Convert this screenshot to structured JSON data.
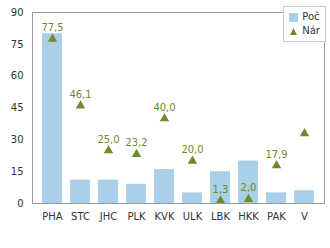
{
  "chart_data": {
    "type": "bar",
    "categories": [
      "PHA",
      "STC",
      "JHC",
      "PLK",
      "KVK",
      "ULK",
      "LBK",
      "HKK",
      "PAK",
      "V"
    ],
    "series": [
      {
        "name": "Poč",
        "type": "bar",
        "color": "#a9cfe9",
        "values": [
          80,
          11,
          11,
          9,
          16,
          5,
          15,
          20,
          5,
          6
        ]
      },
      {
        "name": "Nár",
        "type": "scatter",
        "marker": "triangle",
        "color": "#6f8a2c",
        "data_labels": true,
        "values": [
          77.5,
          46.1,
          25.0,
          23.2,
          40.0,
          20.0,
          1.3,
          2.0,
          17.9,
          33
        ],
        "value_labels": [
          "77,5",
          "46,1",
          "25,0",
          "23,2",
          "40,0",
          "20,0",
          "1,3",
          "2,0",
          "17,9",
          null
        ]
      }
    ],
    "ylim": [
      0,
      90
    ],
    "yticks": [
      0,
      15,
      30,
      45,
      60,
      75,
      90
    ],
    "grid": false,
    "legend": "top-right"
  }
}
